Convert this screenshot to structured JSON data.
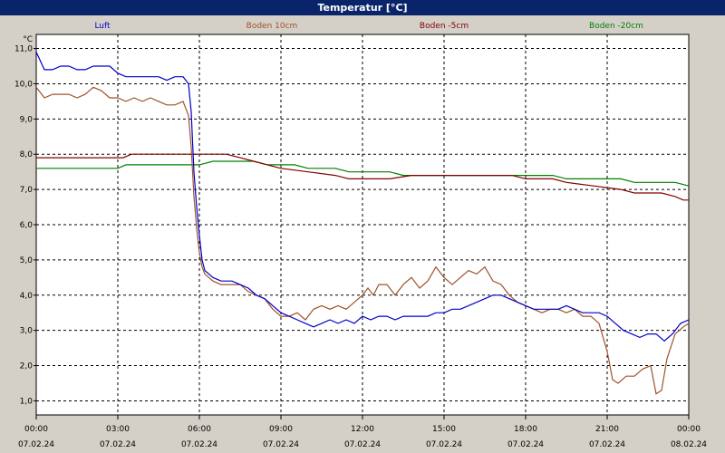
{
  "title": "Temperatur [°C]",
  "chart_data": {
    "type": "line",
    "title": "Temperatur [°C]",
    "ylabel": "°C",
    "ylim": [
      0.6,
      11.4
    ],
    "yticks": [
      "1,0",
      "2,0",
      "3,0",
      "4,0",
      "5,0",
      "6,0",
      "7,0",
      "8,0",
      "9,0",
      "10,0",
      "11,0"
    ],
    "xlim": [
      0,
      24
    ],
    "xticks": [
      {
        "time": "00:00",
        "date": "07.02.24"
      },
      {
        "time": "03:00",
        "date": "07.02.24"
      },
      {
        "time": "06:00",
        "date": "07.02.24"
      },
      {
        "time": "09:00",
        "date": "07.02.24"
      },
      {
        "time": "12:00",
        "date": "07.02.24"
      },
      {
        "time": "15:00",
        "date": "07.02.24"
      },
      {
        "time": "18:00",
        "date": "07.02.24"
      },
      {
        "time": "21:00",
        "date": "07.02.24"
      },
      {
        "time": "00:00",
        "date": "08.02.24"
      }
    ],
    "grid": true,
    "legend_position": "top",
    "series": [
      {
        "name": "Luft",
        "color": "#0000cc",
        "points": [
          [
            0,
            10.9
          ],
          [
            0.3,
            10.4
          ],
          [
            0.6,
            10.4
          ],
          [
            0.9,
            10.5
          ],
          [
            1.2,
            10.5
          ],
          [
            1.5,
            10.4
          ],
          [
            1.8,
            10.4
          ],
          [
            2.1,
            10.5
          ],
          [
            2.4,
            10.5
          ],
          [
            2.7,
            10.5
          ],
          [
            3.0,
            10.3
          ],
          [
            3.3,
            10.2
          ],
          [
            3.6,
            10.2
          ],
          [
            3.9,
            10.2
          ],
          [
            4.2,
            10.2
          ],
          [
            4.5,
            10.2
          ],
          [
            4.8,
            10.1
          ],
          [
            5.1,
            10.2
          ],
          [
            5.4,
            10.2
          ],
          [
            5.6,
            10.0
          ],
          [
            5.7,
            9.2
          ],
          [
            5.8,
            7.5
          ],
          [
            5.9,
            6.5
          ],
          [
            6.0,
            5.7
          ],
          [
            6.1,
            5.0
          ],
          [
            6.2,
            4.7
          ],
          [
            6.5,
            4.5
          ],
          [
            6.8,
            4.4
          ],
          [
            7.2,
            4.4
          ],
          [
            7.5,
            4.3
          ],
          [
            7.8,
            4.2
          ],
          [
            8.1,
            4.0
          ],
          [
            8.4,
            3.9
          ],
          [
            8.7,
            3.7
          ],
          [
            9.0,
            3.5
          ],
          [
            9.3,
            3.4
          ],
          [
            9.6,
            3.3
          ],
          [
            9.9,
            3.2
          ],
          [
            10.2,
            3.1
          ],
          [
            10.5,
            3.2
          ],
          [
            10.8,
            3.3
          ],
          [
            11.1,
            3.2
          ],
          [
            11.4,
            3.3
          ],
          [
            11.7,
            3.2
          ],
          [
            12.0,
            3.4
          ],
          [
            12.3,
            3.3
          ],
          [
            12.6,
            3.4
          ],
          [
            12.9,
            3.4
          ],
          [
            13.2,
            3.3
          ],
          [
            13.5,
            3.4
          ],
          [
            13.8,
            3.4
          ],
          [
            14.1,
            3.4
          ],
          [
            14.4,
            3.4
          ],
          [
            14.7,
            3.5
          ],
          [
            15.0,
            3.5
          ],
          [
            15.3,
            3.6
          ],
          [
            15.6,
            3.6
          ],
          [
            15.9,
            3.7
          ],
          [
            16.2,
            3.8
          ],
          [
            16.5,
            3.9
          ],
          [
            16.8,
            4.0
          ],
          [
            17.1,
            4.0
          ],
          [
            17.4,
            3.9
          ],
          [
            17.7,
            3.8
          ],
          [
            18.0,
            3.7
          ],
          [
            18.3,
            3.6
          ],
          [
            18.6,
            3.6
          ],
          [
            18.9,
            3.6
          ],
          [
            19.2,
            3.6
          ],
          [
            19.5,
            3.7
          ],
          [
            19.8,
            3.6
          ],
          [
            20.1,
            3.5
          ],
          [
            20.4,
            3.5
          ],
          [
            20.7,
            3.5
          ],
          [
            21.0,
            3.4
          ],
          [
            21.3,
            3.2
          ],
          [
            21.6,
            3.0
          ],
          [
            21.9,
            2.9
          ],
          [
            22.2,
            2.8
          ],
          [
            22.5,
            2.9
          ],
          [
            22.8,
            2.9
          ],
          [
            23.1,
            2.7
          ],
          [
            23.4,
            2.9
          ],
          [
            23.7,
            3.2
          ],
          [
            24.0,
            3.3
          ]
        ]
      },
      {
        "name": "Boden 10cm",
        "color": "#a0522d",
        "points": [
          [
            0,
            9.9
          ],
          [
            0.3,
            9.6
          ],
          [
            0.6,
            9.7
          ],
          [
            0.9,
            9.7
          ],
          [
            1.2,
            9.7
          ],
          [
            1.5,
            9.6
          ],
          [
            1.8,
            9.7
          ],
          [
            2.1,
            9.9
          ],
          [
            2.4,
            9.8
          ],
          [
            2.7,
            9.6
          ],
          [
            3.0,
            9.6
          ],
          [
            3.3,
            9.5
          ],
          [
            3.6,
            9.6
          ],
          [
            3.9,
            9.5
          ],
          [
            4.2,
            9.6
          ],
          [
            4.5,
            9.5
          ],
          [
            4.8,
            9.4
          ],
          [
            5.1,
            9.4
          ],
          [
            5.4,
            9.5
          ],
          [
            5.6,
            9.1
          ],
          [
            5.7,
            8.2
          ],
          [
            5.8,
            6.8
          ],
          [
            5.9,
            5.9
          ],
          [
            6.0,
            5.2
          ],
          [
            6.1,
            4.8
          ],
          [
            6.2,
            4.6
          ],
          [
            6.5,
            4.4
          ],
          [
            6.8,
            4.3
          ],
          [
            7.2,
            4.3
          ],
          [
            7.5,
            4.3
          ],
          [
            7.8,
            4.1
          ],
          [
            8.1,
            4.0
          ],
          [
            8.4,
            3.9
          ],
          [
            8.7,
            3.6
          ],
          [
            9.0,
            3.4
          ],
          [
            9.3,
            3.4
          ],
          [
            9.6,
            3.5
          ],
          [
            9.9,
            3.3
          ],
          [
            10.2,
            3.6
          ],
          [
            10.5,
            3.7
          ],
          [
            10.8,
            3.6
          ],
          [
            11.1,
            3.7
          ],
          [
            11.4,
            3.6
          ],
          [
            11.7,
            3.8
          ],
          [
            12.0,
            4.0
          ],
          [
            12.2,
            4.2
          ],
          [
            12.4,
            4.0
          ],
          [
            12.6,
            4.3
          ],
          [
            12.9,
            4.3
          ],
          [
            13.2,
            4.0
          ],
          [
            13.5,
            4.3
          ],
          [
            13.8,
            4.5
          ],
          [
            14.1,
            4.2
          ],
          [
            14.4,
            4.4
          ],
          [
            14.7,
            4.8
          ],
          [
            15.0,
            4.5
          ],
          [
            15.3,
            4.3
          ],
          [
            15.6,
            4.5
          ],
          [
            15.9,
            4.7
          ],
          [
            16.2,
            4.6
          ],
          [
            16.5,
            4.8
          ],
          [
            16.8,
            4.4
          ],
          [
            17.1,
            4.3
          ],
          [
            17.4,
            4.0
          ],
          [
            17.7,
            3.8
          ],
          [
            18.0,
            3.7
          ],
          [
            18.3,
            3.6
          ],
          [
            18.6,
            3.5
          ],
          [
            18.9,
            3.6
          ],
          [
            19.2,
            3.6
          ],
          [
            19.5,
            3.5
          ],
          [
            19.8,
            3.6
          ],
          [
            20.1,
            3.4
          ],
          [
            20.4,
            3.4
          ],
          [
            20.7,
            3.2
          ],
          [
            21.0,
            2.4
          ],
          [
            21.2,
            1.6
          ],
          [
            21.4,
            1.5
          ],
          [
            21.7,
            1.7
          ],
          [
            22.0,
            1.7
          ],
          [
            22.3,
            1.9
          ],
          [
            22.6,
            2.0
          ],
          [
            22.8,
            1.2
          ],
          [
            23.0,
            1.3
          ],
          [
            23.2,
            2.2
          ],
          [
            23.5,
            2.9
          ],
          [
            23.8,
            3.1
          ],
          [
            24.0,
            3.2
          ]
        ]
      },
      {
        "name": "Boden -5cm",
        "color": "#800000",
        "points": [
          [
            0,
            7.9
          ],
          [
            3.2,
            7.9
          ],
          [
            3.5,
            8.0
          ],
          [
            6.5,
            8.0
          ],
          [
            7.0,
            8.0
          ],
          [
            7.5,
            7.9
          ],
          [
            8.0,
            7.8
          ],
          [
            8.5,
            7.7
          ],
          [
            9.0,
            7.6
          ],
          [
            10.0,
            7.5
          ],
          [
            11.0,
            7.4
          ],
          [
            11.5,
            7.3
          ],
          [
            13.0,
            7.3
          ],
          [
            13.8,
            7.4
          ],
          [
            17.5,
            7.4
          ],
          [
            18.0,
            7.3
          ],
          [
            19.0,
            7.3
          ],
          [
            19.5,
            7.2
          ],
          [
            20.5,
            7.1
          ],
          [
            21.5,
            7.0
          ],
          [
            22.0,
            6.9
          ],
          [
            23.0,
            6.9
          ],
          [
            23.5,
            6.8
          ],
          [
            23.8,
            6.7
          ],
          [
            24.0,
            6.7
          ]
        ]
      },
      {
        "name": "Boden -20cm",
        "color": "#008000",
        "points": [
          [
            0,
            7.6
          ],
          [
            3.0,
            7.6
          ],
          [
            3.3,
            7.7
          ],
          [
            6.0,
            7.7
          ],
          [
            6.5,
            7.8
          ],
          [
            8.0,
            7.8
          ],
          [
            8.5,
            7.7
          ],
          [
            9.5,
            7.7
          ],
          [
            10.0,
            7.6
          ],
          [
            11.0,
            7.6
          ],
          [
            11.5,
            7.5
          ],
          [
            13.0,
            7.5
          ],
          [
            13.5,
            7.4
          ],
          [
            19.0,
            7.4
          ],
          [
            19.5,
            7.3
          ],
          [
            21.5,
            7.3
          ],
          [
            22.0,
            7.2
          ],
          [
            23.5,
            7.2
          ],
          [
            24.0,
            7.1
          ]
        ]
      }
    ]
  }
}
